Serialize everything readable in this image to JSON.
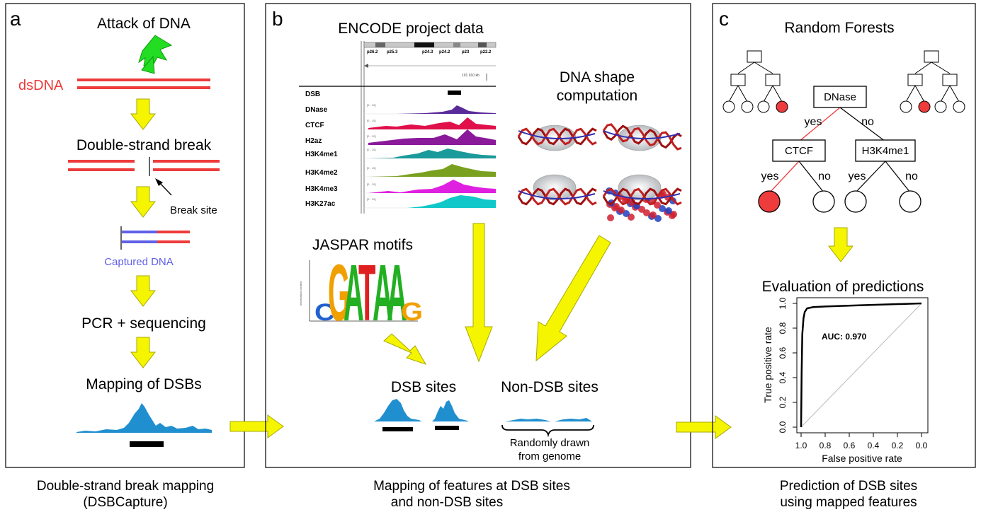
{
  "colors": {
    "accent_red": "#ee3b3b",
    "captured_blue": "#6060e8",
    "arrow_yellow": "#f5f500",
    "peak_blue": "#1f8fd0",
    "bolt_green": "#22dd22"
  },
  "panel_a": {
    "letter": "a",
    "attack": "Attack of DNA",
    "dsdna": "dsDNA",
    "double_strand_break": "Double-strand break",
    "break_site": "Break site",
    "captured_dna": "Captured DNA",
    "pcr": "PCR + sequencing",
    "mapping": "Mapping of DSBs",
    "caption_line1": "Double-strand break mapping",
    "caption_line2": "(DSBCapture)"
  },
  "panel_b": {
    "letter": "b",
    "encode_title": "ENCODE project data",
    "tracks": [
      "DSB",
      "DNase",
      "CTCF",
      "H2az",
      "H3K4me1",
      "H3K4me2",
      "H3K4me3",
      "H3K27ac"
    ],
    "ideogram_bands": [
      "p26.2",
      "p25.3",
      "p24.3",
      "p24.2",
      "p23",
      "p22.2"
    ],
    "scale_text": "101 910 kb",
    "shape_title_line1": "DNA shape",
    "shape_title_line2": "computation",
    "jaspar_title": "JASPAR motifs",
    "motif_letters": [
      "C",
      "G",
      "A",
      "T",
      "A",
      "A",
      "G"
    ],
    "dsb_sites": "DSB sites",
    "non_dsb_sites": "Non-DSB sites",
    "random_line1": "Randomly drawn",
    "random_line2": "from genome",
    "caption_line1": "Mapping of features at DSB sites",
    "caption_line2": "and non-DSB sites"
  },
  "panel_c": {
    "letter": "c",
    "rf_title": "Random Forests",
    "root": "DNase",
    "left_node": "CTCF",
    "right_node": "H3K4me1",
    "yes": "yes",
    "no": "no",
    "eval_title": "Evaluation of predictions",
    "caption_line1": "Prediction of DSB sites",
    "caption_line2": "using mapped features"
  },
  "chart_data": {
    "type": "line",
    "xlabel": "False positive rate",
    "ylabel": "True positive rate",
    "x_ticks": [
      "1.0",
      "0.8",
      "0.6",
      "0.4",
      "0.2",
      "0.0"
    ],
    "y_ticks": [
      "0.0",
      "0.2",
      "0.4",
      "0.6",
      "0.8",
      "1.0"
    ],
    "xlim": [
      1.0,
      0.0
    ],
    "ylim": [
      0.0,
      1.0
    ],
    "annotation": "AUC: 0.970",
    "series": [
      {
        "x": [
          0.0,
          0.005,
          0.01,
          0.02,
          0.03,
          0.05,
          0.1,
          0.2,
          0.5,
          1.0
        ],
        "y": [
          0.0,
          0.45,
          0.75,
          0.88,
          0.93,
          0.96,
          0.97,
          0.975,
          0.985,
          1.0
        ]
      }
    ],
    "reference_line": {
      "x": [
        0.0,
        1.0
      ],
      "y": [
        0.0,
        1.0
      ]
    }
  }
}
